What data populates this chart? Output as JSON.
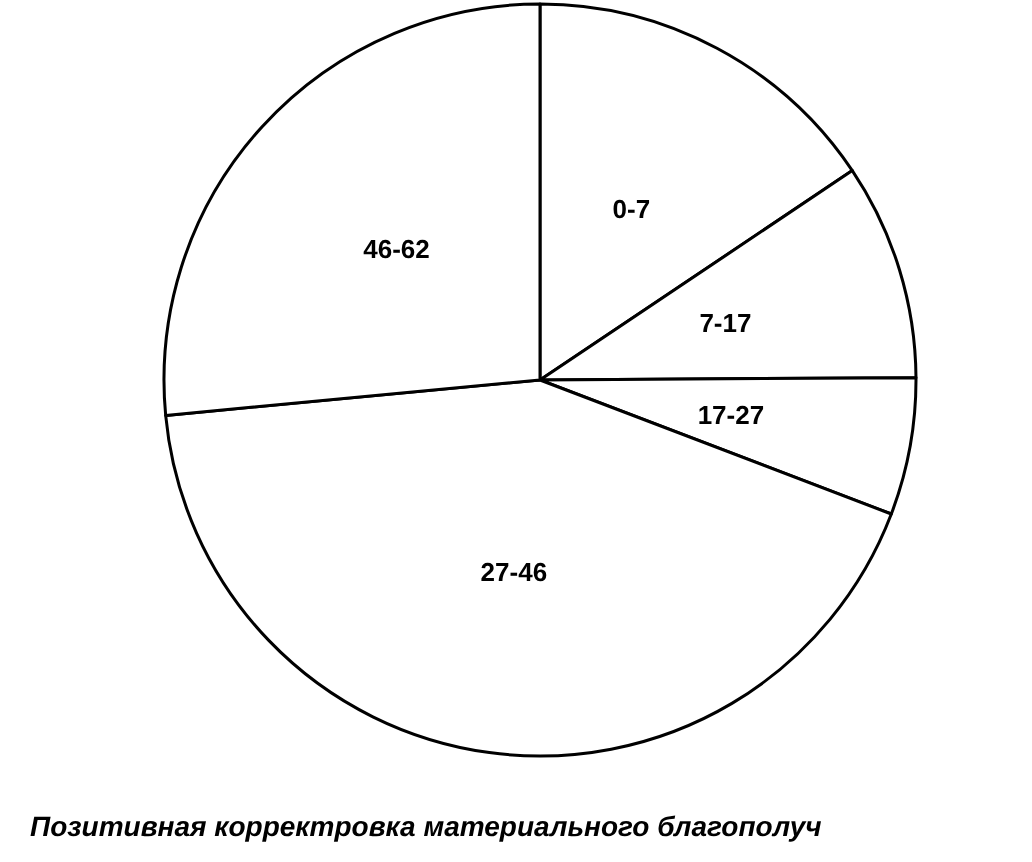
{
  "chart_data": {
    "type": "pie",
    "title": "Позитивная корректровка материального благополуч",
    "categories": [
      "0-7",
      "7-17",
      "17-27",
      "27-46",
      "46-62"
    ],
    "values": [
      15.6,
      9.3,
      5.9,
      42.7,
      26.5
    ],
    "colors": [
      "#ffffff",
      "#ffffff",
      "#ffffff",
      "#ffffff",
      "#ffffff"
    ]
  }
}
